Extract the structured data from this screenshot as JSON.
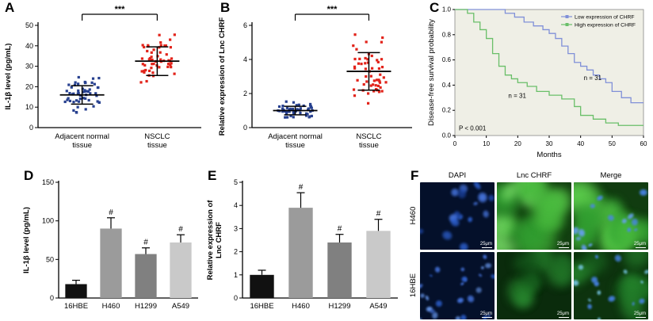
{
  "figure": {
    "bg": "#ffffff",
    "panel_labels": {
      "a": "A",
      "b": "B",
      "c": "C",
      "d": "D",
      "e": "E",
      "f": "F"
    }
  },
  "chart_data": [
    {
      "panel": "A",
      "type": "scatter",
      "ylabel": "IL-1β level (pg/mL)",
      "ylim": [
        0,
        50
      ],
      "yticks": [
        0,
        10,
        20,
        30,
        40,
        50
      ],
      "categories": [
        "Adjacent normal\ntissue",
        "NSCLC\ntissue"
      ],
      "significance": "***",
      "groups": [
        {
          "name": "Adjacent normal tissue",
          "color": "#27408f",
          "mean": 16,
          "sd": 4.5,
          "n": 55
        },
        {
          "name": "NSCLC tissue",
          "color": "#e2231a",
          "mean": 32.5,
          "sd": 7,
          "n": 55
        }
      ]
    },
    {
      "panel": "B",
      "type": "scatter",
      "ylabel": "Relative expression of Lnc CHRF",
      "ylim": [
        0,
        6
      ],
      "yticks": [
        0,
        2,
        4,
        6
      ],
      "categories": [
        "Adjacent normal\ntissue",
        "NSCLC\ntissue"
      ],
      "significance": "***",
      "groups": [
        {
          "name": "Adjacent normal tissue",
          "color": "#27408f",
          "mean": 1.0,
          "sd": 0.25,
          "n": 55
        },
        {
          "name": "NSCLC tissue",
          "color": "#e2231a",
          "mean": 3.3,
          "sd": 1.1,
          "n": 55
        }
      ]
    },
    {
      "panel": "C",
      "type": "line",
      "xlabel": "Months",
      "ylabel": "Disease-free survival probability",
      "xlim": [
        0,
        60
      ],
      "ylim": [
        0,
        1.0
      ],
      "xticks": [
        0,
        10,
        20,
        30,
        40,
        50,
        60
      ],
      "yticks": [
        0.0,
        0.2,
        0.4,
        0.6,
        0.8,
        1.0
      ],
      "p_value": "P < 0.001",
      "plot_bg": "#efefe6",
      "series": [
        {
          "name": "Low expression of CHRF",
          "color": "#8090d8",
          "n_label": "n = 31",
          "x": [
            0,
            13,
            16,
            19,
            22,
            25,
            28,
            30,
            32,
            34,
            36,
            38,
            40,
            42,
            44,
            46,
            48,
            50,
            53,
            56,
            60
          ],
          "y": [
            1.0,
            1.0,
            0.97,
            0.94,
            0.9,
            0.87,
            0.84,
            0.81,
            0.77,
            0.71,
            0.65,
            0.58,
            0.55,
            0.52,
            0.48,
            0.45,
            0.42,
            0.35,
            0.3,
            0.26,
            0.26
          ]
        },
        {
          "name": "High expression of CHRF",
          "color": "#6abf69",
          "n_label": "n = 31",
          "x": [
            0,
            4,
            6,
            8,
            10,
            12,
            14,
            16,
            18,
            20,
            23,
            26,
            30,
            34,
            38,
            40,
            44,
            48,
            52,
            60
          ],
          "y": [
            1.0,
            0.97,
            0.9,
            0.84,
            0.77,
            0.65,
            0.55,
            0.48,
            0.45,
            0.42,
            0.39,
            0.35,
            0.32,
            0.29,
            0.23,
            0.16,
            0.13,
            0.1,
            0.08,
            0.08
          ]
        }
      ]
    },
    {
      "panel": "D",
      "type": "bar",
      "ylabel": "IL-1β level (pg/mL)",
      "categories": [
        "16HBE",
        "H460",
        "H1299",
        "A549"
      ],
      "values": [
        18,
        90,
        57,
        72
      ],
      "errors": [
        5,
        14,
        8,
        10
      ],
      "sig_labels": [
        "",
        "#",
        "#",
        "#"
      ],
      "ylim": [
        0,
        150
      ],
      "yticks": [
        0,
        50,
        100,
        150
      ],
      "bar_colors": [
        "#111111",
        "#9b9b9b",
        "#808080",
        "#c9c9c9"
      ]
    },
    {
      "panel": "E",
      "type": "bar",
      "ylabel": "Relative expression of\nLnc CHRF",
      "categories": [
        "16HBE",
        "H460",
        "H1299",
        "A549"
      ],
      "values": [
        1.0,
        3.9,
        2.4,
        2.9
      ],
      "errors": [
        0.2,
        0.65,
        0.35,
        0.5
      ],
      "sig_labels": [
        "",
        "#",
        "#",
        "#"
      ],
      "ylim": [
        0,
        5
      ],
      "yticks": [
        0,
        1,
        2,
        3,
        4,
        5
      ],
      "bar_colors": [
        "#111111",
        "#9b9b9b",
        "#808080",
        "#c9c9c9"
      ]
    },
    {
      "panel": "F",
      "type": "table",
      "columns": [
        "DAPI",
        "Lnc CHRF",
        "Merge"
      ],
      "rows": [
        "H460",
        "16HBE"
      ],
      "scale_bar": "25μm",
      "tiles": [
        {
          "row": "H460",
          "col": "DAPI",
          "bg": "#04102a",
          "blob_style": "dapi-large"
        },
        {
          "row": "H460",
          "col": "Lnc CHRF",
          "bg": "#123f10",
          "blob_style": "green-bright"
        },
        {
          "row": "H460",
          "col": "Merge",
          "bg": "#113c10",
          "blob_style": "merge-bright"
        },
        {
          "row": "16HBE",
          "col": "DAPI",
          "bg": "#04102a",
          "blob_style": "dapi-small"
        },
        {
          "row": "16HBE",
          "col": "Lnc CHRF",
          "bg": "#0a2b0c",
          "blob_style": "green-dim"
        },
        {
          "row": "16HBE",
          "col": "Merge",
          "bg": "#0d330e",
          "blob_style": "merge-dim"
        }
      ]
    }
  ]
}
